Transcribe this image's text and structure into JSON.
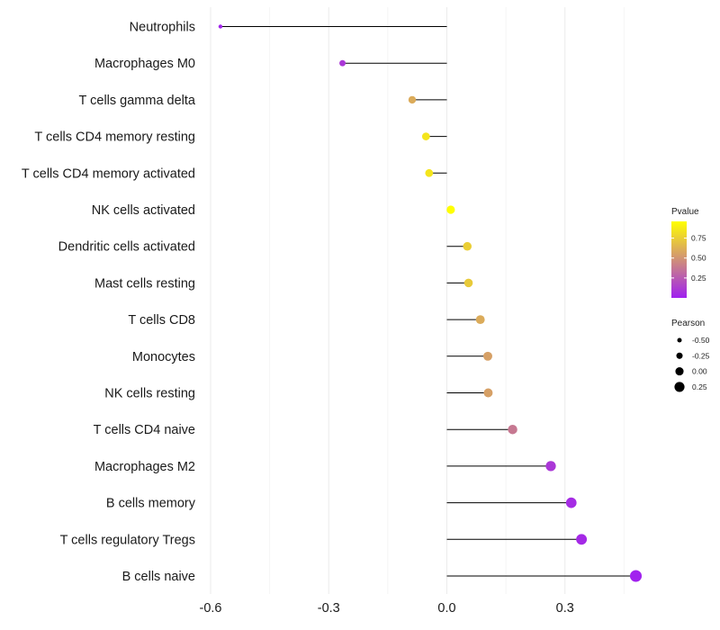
{
  "chart_data": {
    "type": "lollipop",
    "categories": [
      "Neutrophils",
      "Macrophages M0",
      "T cells gamma delta",
      "T cells CD4 memory resting",
      "T cells CD4 memory activated",
      "NK cells activated",
      "Dendritic cells activated",
      "Mast cells resting",
      "T cells CD8",
      "Monocytes",
      "NK cells resting",
      "T cells CD4 naive",
      "Macrophages M2",
      "B cells memory",
      "T cells regulatory  Tregs",
      "B cells naive"
    ],
    "pearson": [
      -0.575,
      -0.265,
      -0.088,
      -0.053,
      -0.045,
      0.01,
      0.052,
      0.055,
      0.085,
      0.104,
      0.105,
      0.167,
      0.264,
      0.316,
      0.342,
      0.48
    ],
    "pvalue": [
      0.02,
      0.1,
      0.6,
      0.85,
      0.85,
      0.96,
      0.75,
      0.73,
      0.6,
      0.55,
      0.55,
      0.38,
      0.1,
      0.05,
      0.04,
      0.01
    ],
    "x_ticks": [
      "-0.6",
      "-0.3",
      "0.0",
      "0.3"
    ],
    "x_tick_values": [
      -0.6,
      -0.3,
      0.0,
      0.3
    ],
    "xlim": [
      -0.62,
      0.5
    ],
    "xlabel": "",
    "ylabel": "",
    "legend_color": {
      "title": "Pvalue",
      "ticks": [
        "0.75",
        "0.50",
        "0.25"
      ],
      "tick_values": [
        0.75,
        0.5,
        0.25
      ],
      "range": [
        0.0,
        0.96
      ],
      "low_color": "#a020f0",
      "high_color": "#ffff00"
    },
    "legend_size": {
      "title": "Pearson",
      "ticks": [
        "-0.50",
        "-0.25",
        "0.00",
        "0.25"
      ],
      "tick_values": [
        -0.5,
        -0.25,
        0.0,
        0.25
      ]
    },
    "grid": true,
    "legend_position": "right"
  }
}
